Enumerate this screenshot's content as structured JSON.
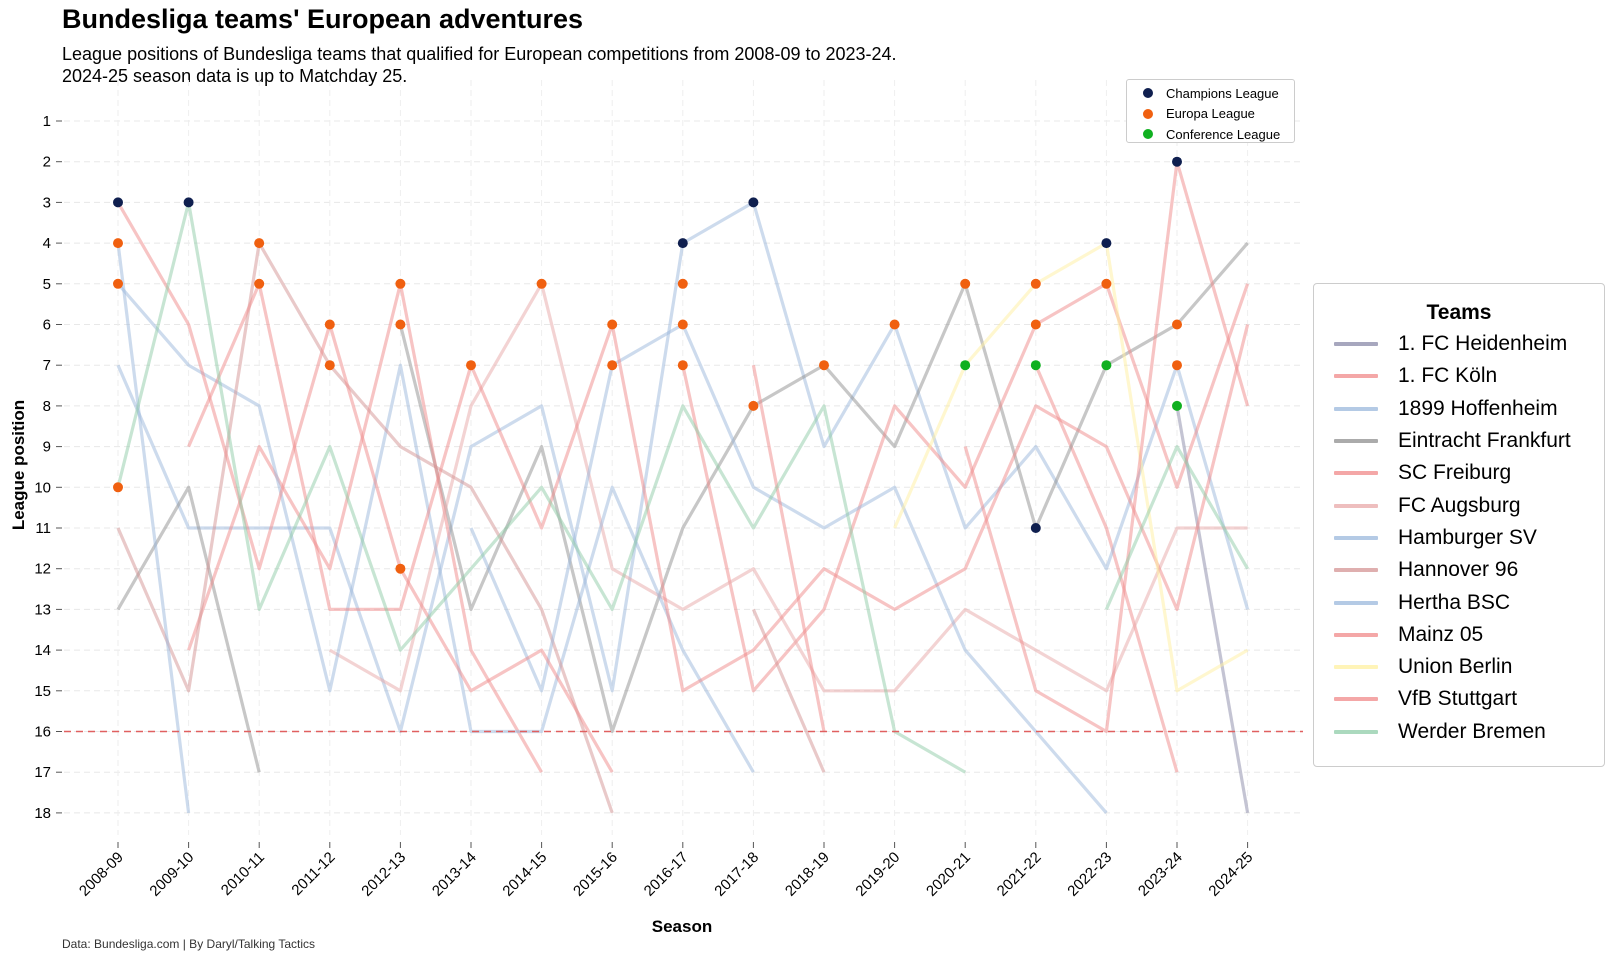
{
  "header": {
    "title": "Bundesliga teams' European adventures",
    "subtitle_line1": "League positions of Bundesliga teams that qualified for European competitions from 2008-09 to 2023-24.",
    "subtitle_line2": "2024-25 season data is up to Matchday 25."
  },
  "footer": {
    "source": "Data: Bundesliga.com | By Daryl/Talking Tactics"
  },
  "chart_data": {
    "type": "line",
    "title": "Bundesliga teams' European adventures",
    "xlabel": "Season",
    "ylabel": "League position",
    "y_inverted": true,
    "ylim": [
      1,
      18
    ],
    "grid": true,
    "relegation_line": 16,
    "seasons": [
      "2008-09",
      "2009-10",
      "2010-11",
      "2011-12",
      "2012-13",
      "2013-14",
      "2014-15",
      "2015-16",
      "2016-17",
      "2017-18",
      "2018-19",
      "2019-20",
      "2020-21",
      "2021-22",
      "2022-23",
      "2023-24",
      "2024-25"
    ],
    "yticks": [
      1,
      2,
      3,
      4,
      5,
      6,
      7,
      8,
      9,
      10,
      11,
      12,
      13,
      14,
      15,
      16,
      17,
      18
    ],
    "series": [
      {
        "name": "1. FC Heidenheim",
        "color": "#8a8aa8",
        "positions": [
          null,
          null,
          null,
          null,
          null,
          null,
          null,
          null,
          null,
          null,
          null,
          null,
          null,
          null,
          null,
          8,
          18
        ]
      },
      {
        "name": "1. FC Köln",
        "color": "#f08a8a",
        "positions": [
          null,
          null,
          null,
          14,
          null,
          null,
          null,
          null,
          null,
          null,
          null,
          null,
          null,
          7,
          11,
          17,
          null
        ]
      },
      {
        "name": "1899 Hoffenheim",
        "color": "#9bb8dc",
        "positions": [
          7,
          11,
          11,
          11,
          16,
          9,
          8,
          15,
          4,
          3,
          9,
          6,
          11,
          9,
          12,
          7,
          13
        ]
      },
      {
        "name": "Eintracht Frankfurt",
        "color": "#8f8f8f",
        "positions": [
          13,
          10,
          17,
          null,
          6,
          13,
          9,
          16,
          11,
          8,
          7,
          9,
          5,
          11,
          7,
          6,
          4
        ]
      },
      {
        "name": "SC Freiburg",
        "color": "#f08a8a",
        "positions": [
          null,
          14,
          9,
          12,
          5,
          14,
          17,
          null,
          7,
          15,
          13,
          8,
          10,
          6,
          5,
          10,
          5
        ]
      },
      {
        "name": "FC Augsburg",
        "color": "#e8a8a8",
        "positions": [
          null,
          null,
          null,
          14,
          15,
          8,
          5,
          12,
          13,
          12,
          15,
          15,
          13,
          14,
          15,
          11,
          11
        ]
      },
      {
        "name": "Hamburger SV",
        "color": "#9bb8dc",
        "positions": [
          5,
          7,
          8,
          15,
          7,
          16,
          16,
          10,
          14,
          17,
          null,
          null,
          null,
          null,
          null,
          null,
          null
        ]
      },
      {
        "name": "Hannover 96",
        "color": "#d49494",
        "positions": [
          11,
          15,
          4,
          7,
          9,
          10,
          13,
          18,
          null,
          13,
          17,
          null,
          null,
          null,
          null,
          null,
          null
        ]
      },
      {
        "name": "Hertha BSC",
        "color": "#9bb8dc",
        "positions": [
          4,
          18,
          null,
          null,
          null,
          11,
          15,
          7,
          6,
          10,
          11,
          10,
          14,
          16,
          18,
          null,
          null
        ]
      },
      {
        "name": "Mainz 05",
        "color": "#f08a8a",
        "positions": [
          null,
          9,
          5,
          13,
          13,
          7,
          11,
          6,
          15,
          14,
          12,
          13,
          12,
          8,
          9,
          13,
          6
        ]
      },
      {
        "name": "Union Berlin",
        "color": "#fff0a0",
        "positions": [
          null,
          null,
          null,
          null,
          null,
          null,
          null,
          null,
          null,
          null,
          null,
          11,
          7,
          5,
          4,
          15,
          14
        ]
      },
      {
        "name": "VfB Stuttgart",
        "color": "#f08a8a",
        "positions": [
          3,
          6,
          12,
          6,
          12,
          15,
          14,
          17,
          null,
          7,
          16,
          null,
          9,
          15,
          16,
          2,
          8
        ]
      },
      {
        "name": "Werder Bremen",
        "color": "#8fcca8",
        "positions": [
          10,
          3,
          13,
          9,
          14,
          12,
          10,
          13,
          8,
          11,
          8,
          16,
          17,
          null,
          13,
          9,
          12
        ]
      }
    ],
    "competition_markers": [
      {
        "season": "2008-09",
        "position": 3,
        "competition": "Champions League"
      },
      {
        "season": "2009-10",
        "position": 3,
        "competition": "Champions League"
      },
      {
        "season": "2016-17",
        "position": 4,
        "competition": "Champions League"
      },
      {
        "season": "2017-18",
        "position": 3,
        "competition": "Champions League"
      },
      {
        "season": "2021-22",
        "position": 11,
        "competition": "Champions League"
      },
      {
        "season": "2022-23",
        "position": 4,
        "competition": "Champions League"
      },
      {
        "season": "2023-24",
        "position": 2,
        "competition": "Champions League"
      },
      {
        "season": "2008-09",
        "position": 4,
        "competition": "Europa League"
      },
      {
        "season": "2008-09",
        "position": 5,
        "competition": "Europa League"
      },
      {
        "season": "2008-09",
        "position": 10,
        "competition": "Europa League"
      },
      {
        "season": "2010-11",
        "position": 4,
        "competition": "Europa League"
      },
      {
        "season": "2010-11",
        "position": 5,
        "competition": "Europa League"
      },
      {
        "season": "2011-12",
        "position": 6,
        "competition": "Europa League"
      },
      {
        "season": "2011-12",
        "position": 7,
        "competition": "Europa League"
      },
      {
        "season": "2012-13",
        "position": 5,
        "competition": "Europa League"
      },
      {
        "season": "2012-13",
        "position": 6,
        "competition": "Europa League"
      },
      {
        "season": "2012-13",
        "position": 12,
        "competition": "Europa League"
      },
      {
        "season": "2013-14",
        "position": 7,
        "competition": "Europa League"
      },
      {
        "season": "2014-15",
        "position": 5,
        "competition": "Europa League"
      },
      {
        "season": "2015-16",
        "position": 6,
        "competition": "Europa League"
      },
      {
        "season": "2015-16",
        "position": 7,
        "competition": "Europa League"
      },
      {
        "season": "2016-17",
        "position": 5,
        "competition": "Europa League"
      },
      {
        "season": "2016-17",
        "position": 6,
        "competition": "Europa League"
      },
      {
        "season": "2016-17",
        "position": 7,
        "competition": "Europa League"
      },
      {
        "season": "2017-18",
        "position": 8,
        "competition": "Europa League"
      },
      {
        "season": "2018-19",
        "position": 7,
        "competition": "Europa League"
      },
      {
        "season": "2019-20",
        "position": 6,
        "competition": "Europa League"
      },
      {
        "season": "2020-21",
        "position": 5,
        "competition": "Europa League"
      },
      {
        "season": "2021-22",
        "position": 5,
        "competition": "Europa League"
      },
      {
        "season": "2021-22",
        "position": 6,
        "competition": "Europa League"
      },
      {
        "season": "2022-23",
        "position": 5,
        "competition": "Europa League"
      },
      {
        "season": "2023-24",
        "position": 6,
        "competition": "Europa League"
      },
      {
        "season": "2023-24",
        "position": 7,
        "competition": "Europa League"
      },
      {
        "season": "2020-21",
        "position": 7,
        "competition": "Conference League"
      },
      {
        "season": "2021-22",
        "position": 7,
        "competition": "Conference League"
      },
      {
        "season": "2022-23",
        "position": 7,
        "competition": "Conference League"
      },
      {
        "season": "2023-24",
        "position": 8,
        "competition": "Conference League"
      }
    ],
    "competition_legend": [
      {
        "label": "Champions League",
        "color": "#0f1f4f"
      },
      {
        "label": "Europa League",
        "color": "#f06010"
      },
      {
        "label": "Conference League",
        "color": "#10b020"
      }
    ],
    "legend_title": "Teams"
  }
}
